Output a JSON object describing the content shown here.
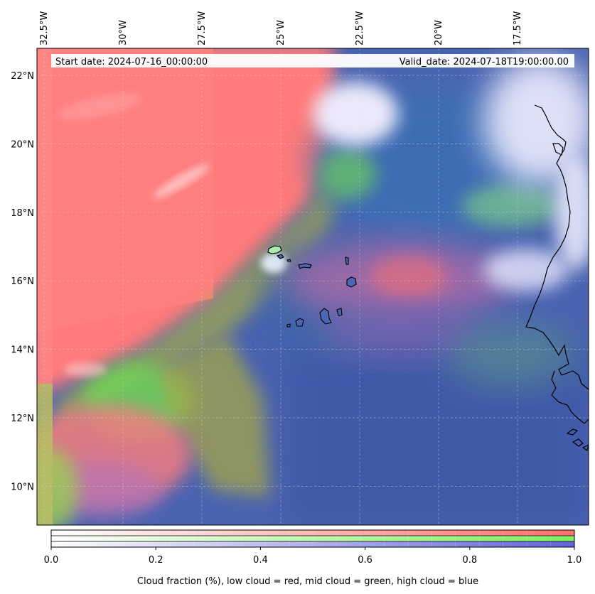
{
  "map": {
    "start_date_label": "Start date: 2024-07-16_00:00:00",
    "valid_date_label": "Valid_date: 2024-07-18T19:00:00.00",
    "lon_ticks": [
      {
        "lon": -32.5,
        "label": "32.5°W"
      },
      {
        "lon": -30.0,
        "label": "30°W"
      },
      {
        "lon": -27.5,
        "label": "27.5°W"
      },
      {
        "lon": -25.0,
        "label": "25°W"
      },
      {
        "lon": -22.5,
        "label": "22.5°W"
      },
      {
        "lon": -20.0,
        "label": "20°W"
      },
      {
        "lon": -17.5,
        "label": "17.5°W"
      }
    ],
    "lat_ticks": [
      {
        "lat": 22,
        "label": "22°N"
      },
      {
        "lat": 20,
        "label": "20°N"
      },
      {
        "lat": 18,
        "label": "18°N"
      },
      {
        "lat": 16,
        "label": "16°N"
      },
      {
        "lat": 14,
        "label": "14°N"
      },
      {
        "lat": 12,
        "label": "12°N"
      },
      {
        "lat": 10,
        "label": "10°N"
      }
    ],
    "colors": {
      "low_cloud": "#ff7f7f",
      "mid_cloud": "#7fff5f",
      "high_cloud": "#5a5ae0",
      "ocean": "#4a66b4"
    }
  },
  "colorbar": {
    "ticks": [
      "0.0",
      "0.2",
      "0.4",
      "0.6",
      "0.8",
      "1.0"
    ],
    "tick_values": [
      0.0,
      0.2,
      0.4,
      0.6,
      0.8,
      1.0
    ],
    "caption": "Cloud fraction (%), low cloud = red, mid cloud = green, high cloud = blue"
  }
}
